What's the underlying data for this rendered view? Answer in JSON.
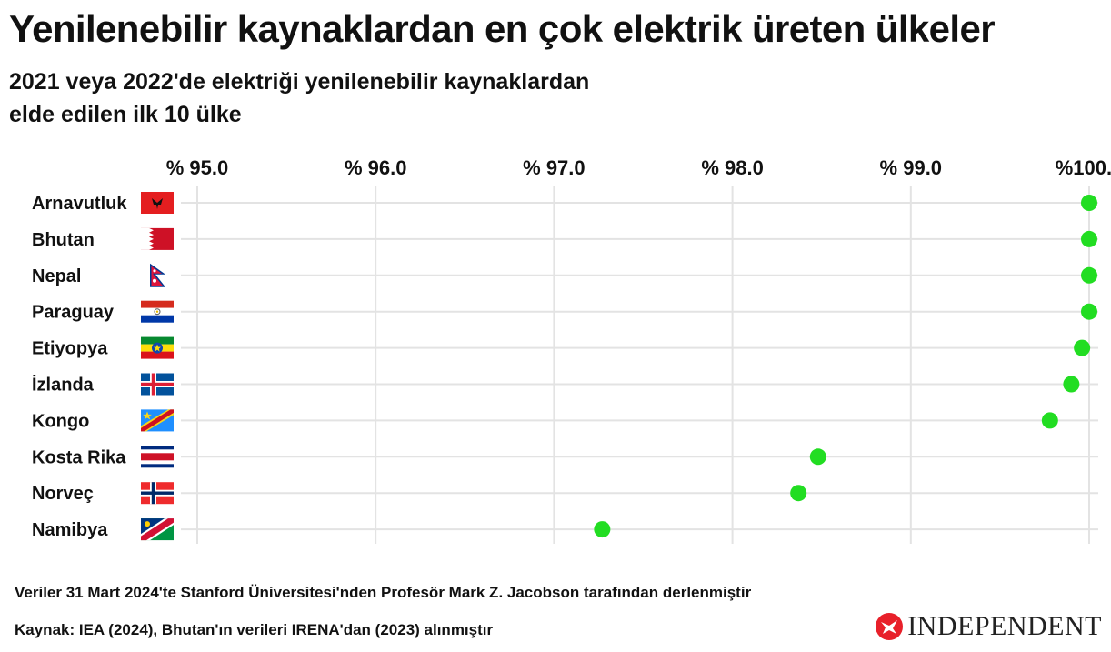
{
  "header": {
    "title": "Yenilenebilir kaynaklardan en çok elektrik üreten ülkeler",
    "subtitle_line1": "2021 veya 2022'de elektriği yenilenebilir kaynaklardan",
    "subtitle_line2": "elde edilen ilk 10 ülke"
  },
  "chart_data": {
    "type": "scatter",
    "x_axis": {
      "ticks": [
        95.0,
        96.0,
        97.0,
        98.0,
        99.0,
        100.0
      ],
      "tick_labels": [
        "% 95.0",
        "% 96.0",
        "% 97.0",
        "% 98.0",
        "% 99.0",
        "%100.0"
      ],
      "range": [
        95.0,
        100.0
      ],
      "position": "top"
    },
    "grid": true,
    "marker_color": "#22dd22",
    "points": [
      {
        "country": "Arnavutluk",
        "value": 100.0,
        "flag": "albania-flag"
      },
      {
        "country": "Bhutan",
        "value": 100.0,
        "flag": "bahrain-style-flag"
      },
      {
        "country": "Nepal",
        "value": 100.0,
        "flag": "nepal-flag"
      },
      {
        "country": "Paraguay",
        "value": 100.0,
        "flag": "paraguay-flag"
      },
      {
        "country": "Etiyopya",
        "value": 99.96,
        "flag": "ethiopia-flag"
      },
      {
        "country": "İzlanda",
        "value": 99.9,
        "flag": "iceland-flag"
      },
      {
        "country": "Kongo",
        "value": 99.78,
        "flag": "dr-congo-flag"
      },
      {
        "country": "Kosta Rika",
        "value": 98.48,
        "flag": "costa-rica-flag"
      },
      {
        "country": "Norveç",
        "value": 98.37,
        "flag": "norway-flag"
      },
      {
        "country": "Namibya",
        "value": 97.27,
        "flag": "namibia-flag"
      }
    ]
  },
  "footer": {
    "note": "Veriler 31 Mart 2024'te Stanford Üniversitesi'nden Profesör Mark Z. Jacobson tarafından derlenmiştir",
    "source": "Kaynak: IEA (2024), Bhutan'ın verileri IRENA'dan (2023) alınmıştır",
    "logo_text": "INDEPENDENT",
    "logo_color": "#e8202a"
  }
}
